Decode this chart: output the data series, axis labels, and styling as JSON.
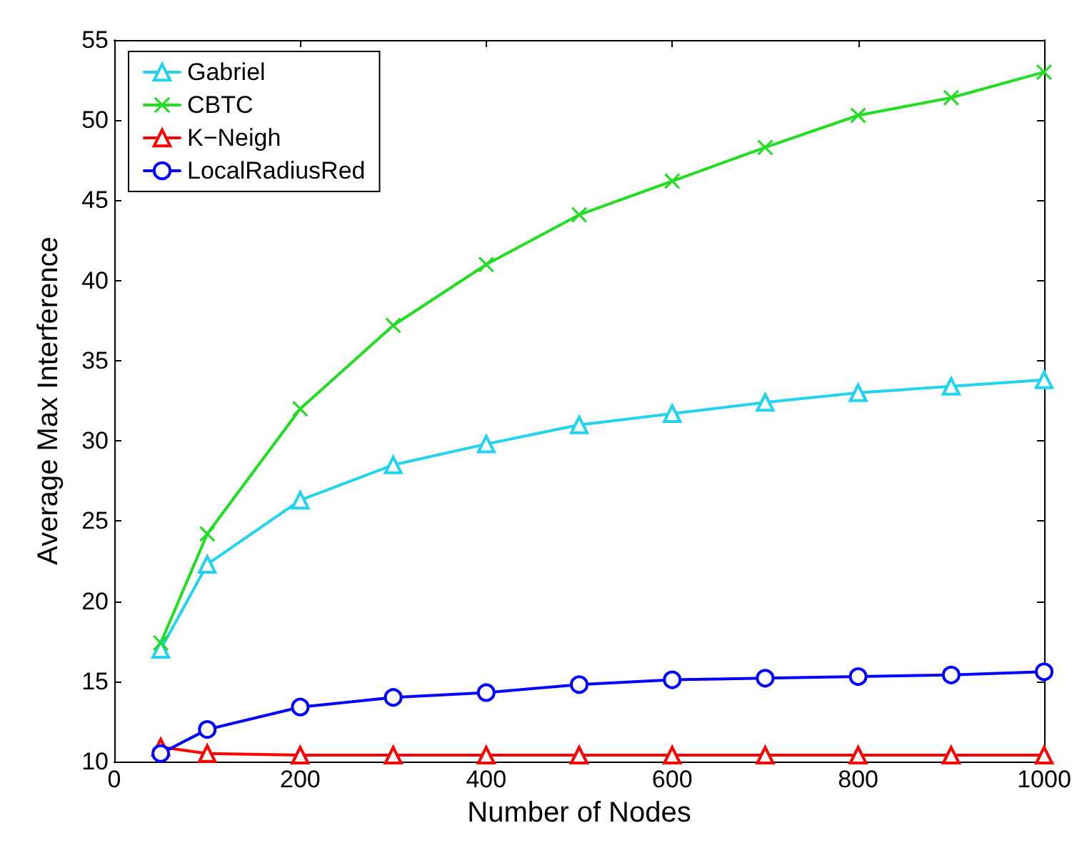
{
  "chart_data": {
    "type": "line",
    "xlabel": "Number of Nodes",
    "ylabel": "Average Max Interference",
    "x": [
      50,
      100,
      200,
      300,
      400,
      500,
      600,
      700,
      800,
      900,
      1000
    ],
    "series": [
      {
        "name": "Gabriel",
        "color": "#22d3ee",
        "marker": "triangle",
        "values": [
          17.0,
          22.3,
          26.3,
          28.5,
          29.8,
          31.0,
          31.7,
          32.4,
          33.0,
          33.4,
          33.8
        ]
      },
      {
        "name": "CBTC",
        "color": "#22dd22",
        "marker": "cross",
        "values": [
          17.4,
          24.2,
          32.0,
          37.2,
          41.0,
          44.1,
          46.2,
          48.3,
          50.3,
          51.4,
          53.0
        ]
      },
      {
        "name": "K−Neigh",
        "color": "#ff0000",
        "marker": "triangle",
        "values": [
          10.9,
          10.5,
          10.4,
          10.4,
          10.4,
          10.4,
          10.4,
          10.4,
          10.4,
          10.4,
          10.4
        ]
      },
      {
        "name": "LocalRadiusRed",
        "color": "#0000ff",
        "marker": "circle",
        "values": [
          10.5,
          12.0,
          13.4,
          14.0,
          14.3,
          14.8,
          15.1,
          15.2,
          15.3,
          15.4,
          15.6
        ]
      }
    ],
    "xlim": [
      0,
      1000
    ],
    "xticks": [
      0,
      200,
      400,
      600,
      800,
      1000
    ],
    "ylim": [
      10,
      55
    ],
    "yticks": [
      10,
      15,
      20,
      25,
      30,
      35,
      40,
      45,
      50,
      55
    ],
    "grid": false,
    "legend": "top left",
    "line_style": "solid"
  }
}
